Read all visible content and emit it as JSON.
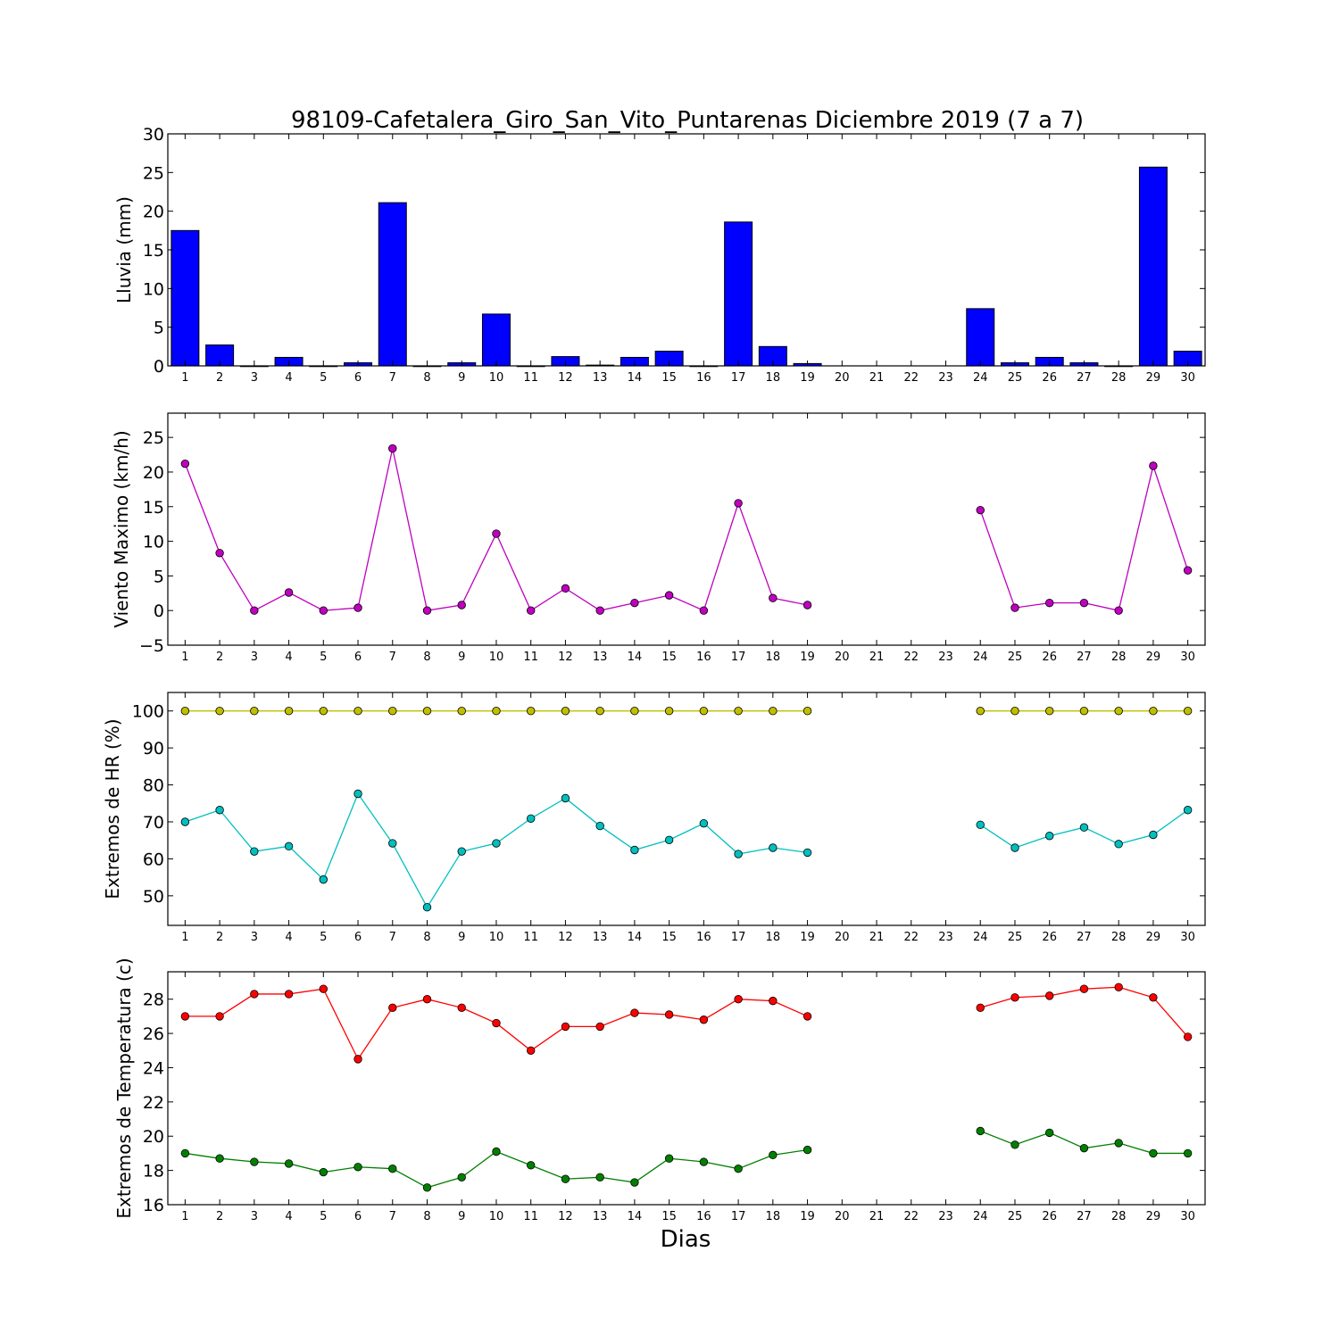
{
  "chart_data": {
    "title": "98109-Cafetalera_Giro_San_Vito_Puntarenas Diciembre 2019  (7 a 7)",
    "xlabel": "Dias",
    "type": "multi-panel",
    "days": [
      "1",
      "2",
      "3",
      "4",
      "5",
      "6",
      "7",
      "8",
      "9",
      "10",
      "11",
      "12",
      "13",
      "14",
      "15",
      "16",
      "17",
      "18",
      "19",
      "20",
      "21",
      "22",
      "23",
      "24",
      "25",
      "26",
      "27",
      "28",
      "29",
      "30"
    ],
    "panels": [
      {
        "type": "bar",
        "ylabel": "Lluvia (mm)",
        "ylim": [
          0,
          30
        ],
        "yticks": [
          "0",
          "5",
          "10",
          "15",
          "20",
          "25",
          "30"
        ],
        "series": [
          {
            "color": "#0000ff",
            "values": [
              17.5,
              2.7,
              0,
              1.1,
              0,
              0.4,
              21.1,
              0,
              0.4,
              6.7,
              0,
              1.2,
              0.1,
              1.1,
              1.9,
              0,
              18.6,
              2.5,
              0.3,
              null,
              null,
              null,
              null,
              7.4,
              0.4,
              1.1,
              0.4,
              0,
              25.7,
              1.9
            ]
          }
        ]
      },
      {
        "type": "line",
        "ylabel": "Viento Maximo (km/h)",
        "ylim": [
          -5,
          28.5
        ],
        "yticks": [
          "−5",
          "0",
          "5",
          "10",
          "15",
          "20",
          "25"
        ],
        "series": [
          {
            "color": "#bf00bf",
            "values": [
              21.2,
              8.3,
              0,
              2.6,
              0,
              0.4,
              23.4,
              0,
              0.8,
              11.1,
              0,
              3.2,
              0,
              1.1,
              2.2,
              0,
              15.5,
              1.8,
              0.8,
              null,
              null,
              null,
              null,
              14.5,
              0.4,
              1.1,
              1.1,
              0,
              20.9,
              5.8
            ]
          }
        ]
      },
      {
        "type": "line",
        "ylabel": "Extremos de HR (%)",
        "ylim": [
          42,
          105
        ],
        "yticks": [
          "50",
          "60",
          "70",
          "80",
          "90",
          "100"
        ],
        "series": [
          {
            "color": "#bfbf00",
            "values": [
              100,
              100,
              100,
              100,
              100,
              100,
              100,
              100,
              100,
              100,
              100,
              100,
              100,
              100,
              100,
              100,
              100,
              100,
              100,
              null,
              null,
              null,
              null,
              100,
              100,
              100,
              100,
              100,
              100,
              100
            ]
          },
          {
            "color": "#00bfbf",
            "values": [
              70,
              73.2,
              62,
              63.4,
              54.4,
              77.6,
              64.2,
              46.9,
              62,
              64.2,
              70.9,
              76.4,
              68.9,
              62.4,
              65.1,
              69.6,
              61.3,
              63,
              61.7,
              null,
              null,
              null,
              null,
              69.2,
              63,
              66.2,
              68.5,
              64,
              66.5,
              73.2
            ]
          }
        ]
      },
      {
        "type": "line",
        "ylabel": "Extremos de Temperatura (c)",
        "ylim": [
          16,
          29.6
        ],
        "yticks": [
          "16",
          "18",
          "20",
          "22",
          "24",
          "26",
          "28"
        ],
        "series": [
          {
            "color": "#ff0000",
            "values": [
              27,
              27,
              28.3,
              28.3,
              28.6,
              24.5,
              27.5,
              28,
              27.5,
              26.6,
              25,
              26.4,
              26.4,
              27.2,
              27.1,
              26.8,
              28,
              27.9,
              27,
              null,
              null,
              null,
              null,
              27.5,
              28.1,
              28.2,
              28.6,
              28.7,
              28.1,
              25.8
            ]
          },
          {
            "color": "#008000",
            "values": [
              19,
              18.7,
              18.5,
              18.4,
              17.9,
              18.2,
              18.1,
              17,
              17.6,
              19.1,
              18.3,
              17.5,
              17.6,
              17.3,
              18.7,
              18.5,
              18.1,
              18.9,
              19.2,
              null,
              null,
              null,
              null,
              20.3,
              19.5,
              20.2,
              19.3,
              19.6,
              19,
              19
            ]
          }
        ]
      }
    ]
  }
}
